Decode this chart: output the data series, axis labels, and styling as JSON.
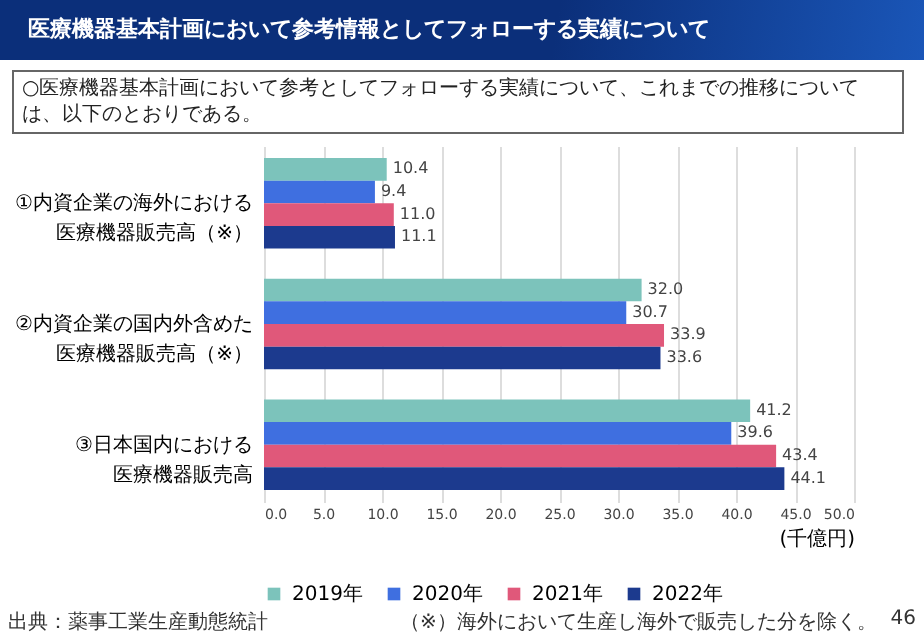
{
  "chart_data": {
    "type": "bar",
    "orientation": "horizontal",
    "title": "医療機器基本計画において参考情報としてフォローする実績について",
    "subtitle": "○医療機器基本計画において参考としてフォローする実績について、これまでの推移については、以下のとおりである。",
    "categories": [
      "①内資企業の海外における医療機器販売高（※）",
      "②内資企業の国内外含めた医療機器販売高（※）",
      "③日本国内における医療機器販売高"
    ],
    "series": [
      {
        "name": "2019年",
        "color": "#7cc3bb",
        "values": [
          10.4,
          32.0,
          41.2
        ],
        "value_labels": [
          "10.4",
          "32.0",
          "41.2"
        ]
      },
      {
        "name": "2020年",
        "color": "#3f6fe0",
        "values": [
          9.4,
          30.7,
          39.6
        ],
        "value_labels": [
          "9.4",
          "30.7",
          "39.6"
        ]
      },
      {
        "name": "2021年",
        "color": "#e0587a",
        "values": [
          11.0,
          33.9,
          43.4
        ],
        "value_labels": [
          "11.0",
          "33.9",
          "43.4"
        ]
      },
      {
        "name": "2022年",
        "color": "#1c3a8e",
        "values": [
          11.1,
          33.6,
          44.1
        ],
        "value_labels": [
          "11.1",
          "33.6",
          "44.1"
        ]
      }
    ],
    "xlabel": "(千億円)",
    "xlim": [
      0,
      50
    ],
    "xticks": [
      {
        "value": 0,
        "label": "0.0"
      },
      {
        "value": 5,
        "label": "5.0"
      },
      {
        "value": 10,
        "label": "10.0"
      },
      {
        "value": 15,
        "label": "15.0"
      },
      {
        "value": 20,
        "label": "20.0"
      },
      {
        "value": 25,
        "label": "25.0"
      },
      {
        "value": 30,
        "label": "30.0"
      },
      {
        "value": 35,
        "label": "35.0"
      },
      {
        "value": 40,
        "label": "40.0"
      },
      {
        "value": 45,
        "label": "45.0"
      },
      {
        "value": 50,
        "label": "50.0"
      }
    ],
    "grid": "x",
    "legend": "bottom",
    "annotations": [
      "出典：薬事工業生産動態統計",
      "（※）海外において生産し海外で販売した分を除く。",
      "46"
    ]
  }
}
